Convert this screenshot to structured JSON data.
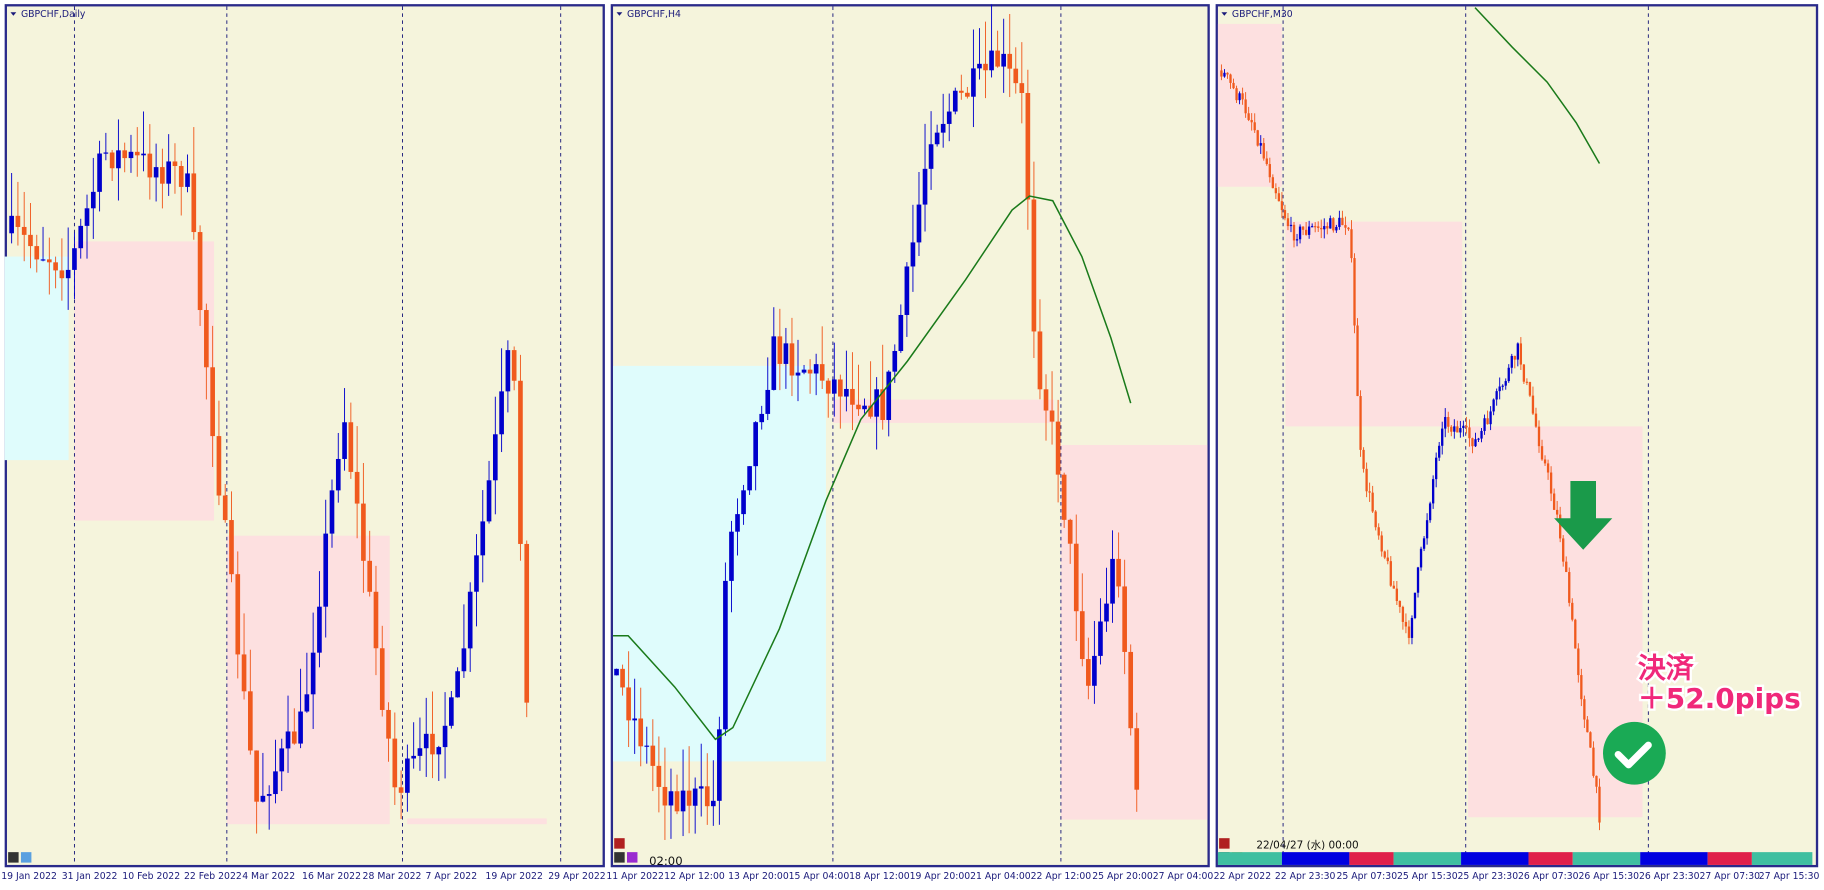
{
  "panels": [
    {
      "title": "GBPCHF,Daily",
      "x_labels": [
        "19 Jan 2022",
        "31 Jan 2022",
        "10 Feb 2022",
        "22 Feb 2022",
        "4 Mar 2022",
        "16 Mar 2022",
        "28 Mar 2022",
        "7 Apr 2022",
        "19 Apr 2022",
        "29 Apr 2022"
      ]
    },
    {
      "title": "GBPCHF,H4",
      "x_labels": [
        "11 Apr 2022",
        "12 Apr 12:00",
        "13 Apr 20:00",
        "15 Apr 04:00",
        "18 Apr 12:00",
        "19 Apr 20:00",
        "21 Apr 04:00",
        "22 Apr 12:00",
        "25 Apr 20:00",
        "27 Apr 04:00"
      ],
      "status": "02:00"
    },
    {
      "title": "GBPCHF,M30",
      "x_labels": [
        "22 Apr 2022",
        "22 Apr 23:30",
        "25 Apr 07:30",
        "25 Apr 15:30",
        "25 Apr 23:30",
        "26 Apr 07:30",
        "26 Apr 15:30",
        "26 Apr 23:30",
        "27 Apr 07:30",
        "27 Apr 15:30"
      ],
      "status": "22/04/27 (水) 00:00"
    }
  ],
  "annotation": {
    "line1": "決済",
    "line2": "＋52.0pips"
  }
}
